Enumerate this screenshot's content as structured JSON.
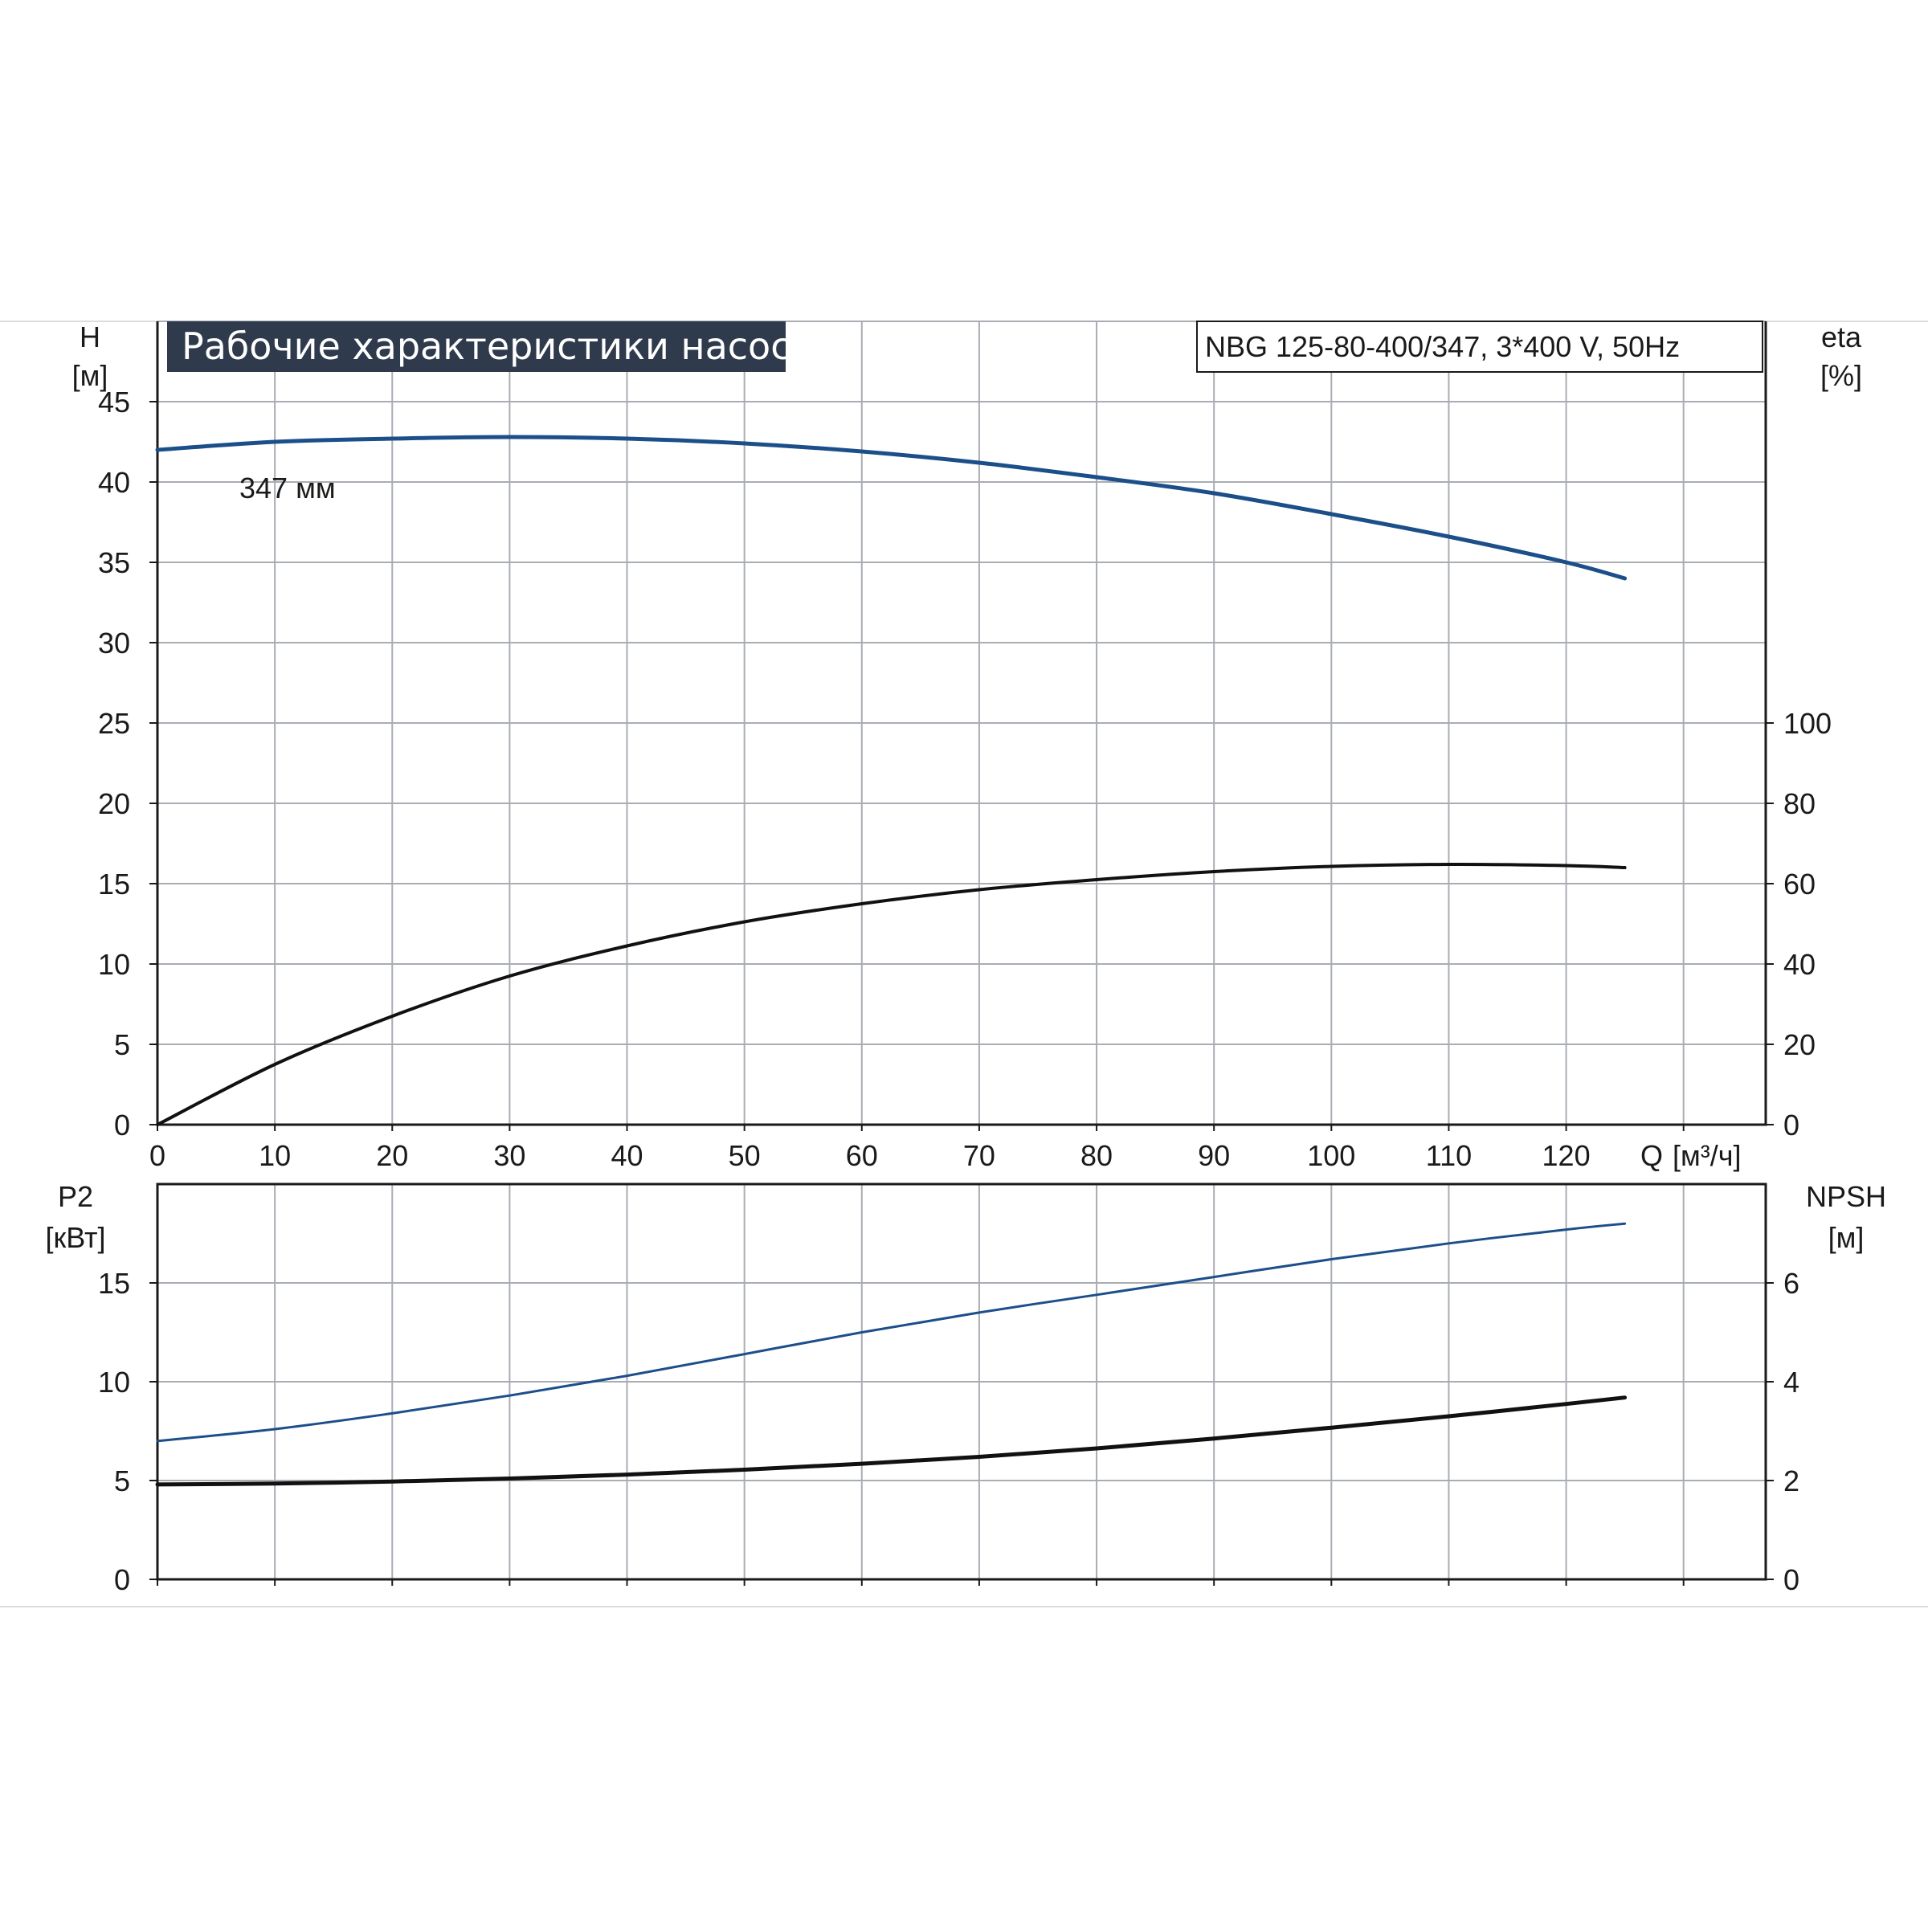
{
  "title": "Рабочие характеристики насоса",
  "model": "NBG 125-80-400/347, 3*400 V, 50Hz",
  "colors": {
    "blue": "#1c4f8a",
    "black": "#111111",
    "title_bg": "#2f3b4d",
    "grid": "#a9adb3"
  },
  "chart_data": [
    {
      "type": "line",
      "panel": "top",
      "x_axis": {
        "ticks": [
          "0",
          "10",
          "20",
          "30",
          "40",
          "50",
          "60",
          "70",
          "80",
          "90",
          "100",
          "110",
          "120"
        ],
        "label_q": "Q",
        "label_unit": "[м³/ч]",
        "range": [
          0,
          137
        ]
      },
      "y_left": {
        "label": "H",
        "unit": "[м]",
        "ticks": [
          "0",
          "5",
          "10",
          "15",
          "20",
          "25",
          "30",
          "35",
          "40",
          "45"
        ],
        "range": [
          0,
          50
        ]
      },
      "y_right": {
        "label": "eta",
        "unit": "[%]",
        "ticks": [
          "0",
          "20",
          "40",
          "60",
          "80",
          "100"
        ],
        "range": [
          0,
          200
        ]
      },
      "series": [
        {
          "name": "347 мм",
          "axis": "left",
          "color": "#1c4f8a",
          "x": [
            0,
            10,
            20,
            30,
            40,
            50,
            60,
            70,
            80,
            90,
            100,
            110,
            120,
            125
          ],
          "y": [
            42.0,
            42.5,
            42.7,
            42.8,
            42.7,
            42.4,
            41.9,
            41.2,
            40.3,
            39.3,
            38.0,
            36.6,
            35.0,
            34.0
          ]
        },
        {
          "axis": "right",
          "color": "#111111",
          "x": [
            0,
            10,
            20,
            30,
            40,
            50,
            60,
            70,
            80,
            90,
            100,
            110,
            120,
            125
          ],
          "y": [
            0,
            15,
            27,
            37,
            44.5,
            50.5,
            55,
            58.5,
            61,
            63,
            64.3,
            64.8,
            64.5,
            64
          ]
        }
      ]
    },
    {
      "type": "line",
      "panel": "bottom",
      "x_axis": {
        "range": [
          0,
          137
        ]
      },
      "y_left": {
        "label": "P2",
        "unit": "[кВт]",
        "ticks": [
          "0",
          "5",
          "10",
          "15"
        ],
        "range": [
          0,
          20
        ]
      },
      "y_right": {
        "label": "NPSH",
        "unit": "[м]",
        "ticks": [
          "0",
          "2",
          "4",
          "6"
        ],
        "range": [
          0,
          8
        ]
      },
      "series": [
        {
          "axis": "left",
          "color": "#1c4f8a",
          "x": [
            0,
            10,
            20,
            30,
            40,
            50,
            60,
            70,
            80,
            90,
            100,
            110,
            120,
            125
          ],
          "y": [
            7.0,
            7.6,
            8.4,
            9.3,
            10.3,
            11.4,
            12.5,
            13.5,
            14.4,
            15.3,
            16.2,
            17.0,
            17.7,
            18.0
          ]
        },
        {
          "axis": "right",
          "color": "#111111",
          "x": [
            0,
            10,
            20,
            30,
            40,
            50,
            60,
            70,
            80,
            90,
            100,
            110,
            120,
            125
          ],
          "y": [
            1.92,
            1.94,
            1.98,
            2.04,
            2.12,
            2.22,
            2.34,
            2.48,
            2.65,
            2.85,
            3.07,
            3.3,
            3.55,
            3.68
          ]
        }
      ]
    }
  ]
}
